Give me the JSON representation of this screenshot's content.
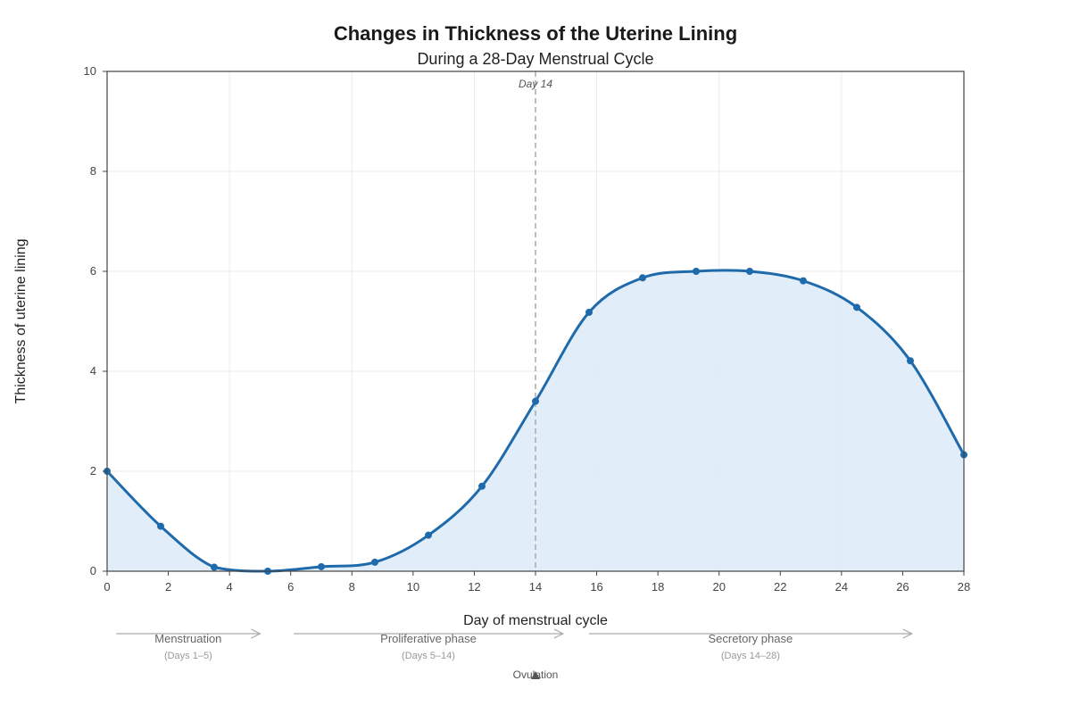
{
  "chart_data": {
    "type": "area",
    "title": "Changes in Thickness of the Uterine Lining",
    "subtitle": "During a 28-Day Menstrual Cycle",
    "xlabel": "Day of menstrual cycle",
    "ylabel": "Thickness of uterine lining",
    "xlim": [
      0,
      28
    ],
    "ylim": [
      0,
      10
    ],
    "xticks": [
      0,
      2,
      4,
      6,
      8,
      10,
      12,
      14,
      16,
      18,
      20,
      22,
      24,
      26,
      28
    ],
    "yticks": [
      0,
      2,
      4,
      6,
      8,
      10
    ],
    "grid": true,
    "series": [
      {
        "x": [
          0,
          1.75,
          3.5,
          5.25,
          7,
          8.75,
          10.5,
          12.25,
          14,
          15.75,
          17.5,
          19.25,
          21,
          22.75,
          24.5,
          26.25,
          28
        ],
        "values": [
          2.0,
          0.9,
          0.08,
          0.0,
          0.09,
          0.18,
          0.72,
          1.7,
          3.4,
          5.18,
          5.87,
          6.0,
          6.0,
          5.81,
          5.28,
          4.21,
          2.33
        ],
        "color": "#1f6aab",
        "fill": "#dcebf8"
      }
    ],
    "annotations": {
      "marker_line": {
        "x": 14,
        "label": "Day 14"
      },
      "phases": [
        {
          "name": "Menstruation",
          "range": "(Days 1–5)",
          "start": 0.3,
          "end": 5.0
        },
        {
          "name": "Proliferative phase",
          "range": "(Days 5–14)",
          "start": 6.1,
          "end": 14.9
        },
        {
          "name": "Secretory phase",
          "range": "(Days 14–28)",
          "start": 15.75,
          "end": 26.3
        }
      ],
      "ovulation": {
        "x": 14,
        "label": "Ovulation"
      }
    }
  }
}
